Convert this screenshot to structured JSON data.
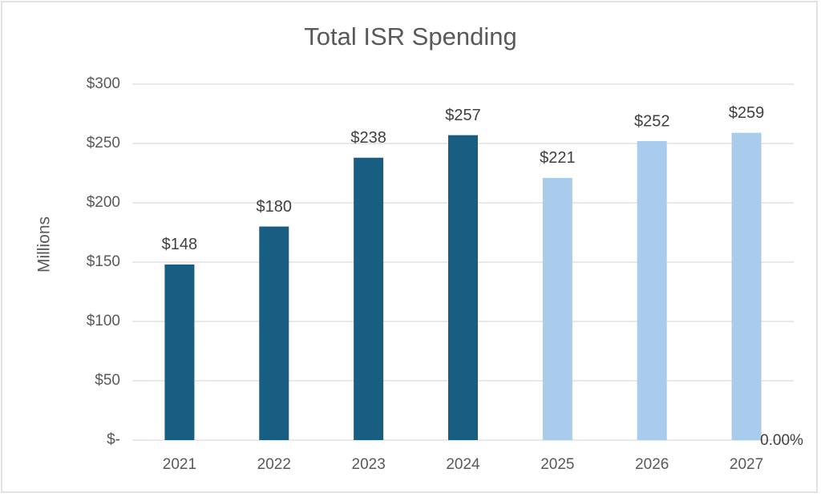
{
  "chart_data": {
    "type": "bar",
    "title": "Total ISR Spending",
    "ylabel": "Millions",
    "categories": [
      "2021",
      "2022",
      "2023",
      "2024",
      "2025",
      "2026",
      "2027"
    ],
    "values": [
      148,
      180,
      238,
      257,
      221,
      252,
      259
    ],
    "value_labels": [
      "$148",
      "$180",
      "$238",
      "$257",
      "$221",
      "$252",
      "$259"
    ],
    "colors": [
      "#175e82",
      "#175e82",
      "#175e82",
      "#175e82",
      "#a9cbec",
      "#a9cbec",
      "#a9cbec"
    ],
    "ylim": [
      0,
      300
    ],
    "yticks": [
      {
        "value": 0,
        "label": "$-"
      },
      {
        "value": 50,
        "label": "$50"
      },
      {
        "value": 100,
        "label": "$100"
      },
      {
        "value": 150,
        "label": "$150"
      },
      {
        "value": 200,
        "label": "$200"
      },
      {
        "value": 250,
        "label": "$250"
      },
      {
        "value": 300,
        "label": "$300"
      }
    ],
    "grid": true,
    "annotation": "0.00%"
  }
}
